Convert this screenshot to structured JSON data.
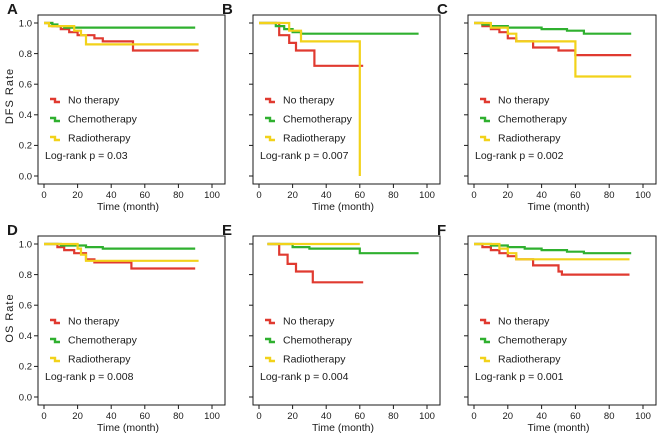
{
  "figure_labels": {
    "dfs_ylabel": "DFS Rate",
    "os_ylabel": "OS Rate"
  },
  "colors": {
    "no_therapy": "#e03a30",
    "chemotherapy": "#2fb02f",
    "radiotherapy": "#f2d21a",
    "axis": "#1a1a1a"
  },
  "chart_data": [
    {
      "type": "line",
      "subtype": "kaplan-meier",
      "panel": "A",
      "xlabel": "Time (month)",
      "ylabel": "DFS Rate",
      "xlim": [
        0,
        100
      ],
      "ylim": [
        0,
        1.0
      ],
      "xticks": [
        0,
        20,
        40,
        60,
        80,
        100
      ],
      "yticks": [
        0.0,
        0.2,
        0.4,
        0.6,
        0.8,
        1.0
      ],
      "show_y_ticklabels": true,
      "logrank": "Log-rank p = 0.03",
      "series": [
        {
          "name": "No therapy",
          "color_key": "no_therapy",
          "steps": [
            [
              0,
              1.0
            ],
            [
              5,
              0.98
            ],
            [
              10,
              0.96
            ],
            [
              15,
              0.94
            ],
            [
              20,
              0.92
            ],
            [
              30,
              0.9
            ],
            [
              35,
              0.88
            ],
            [
              53,
              0.82
            ],
            [
              92,
              0.82
            ]
          ]
        },
        {
          "name": "Chemotherapy",
          "color_key": "chemotherapy",
          "steps": [
            [
              0,
              1.0
            ],
            [
              5,
              0.99
            ],
            [
              8,
              0.98
            ],
            [
              12,
              0.97
            ],
            [
              90,
              0.97
            ]
          ]
        },
        {
          "name": "Radiotherapy",
          "color_key": "radiotherapy",
          "steps": [
            [
              0,
              1.0
            ],
            [
              3,
              0.98
            ],
            [
              18,
              0.95
            ],
            [
              22,
              0.92
            ],
            [
              25,
              0.86
            ],
            [
              92,
              0.86
            ]
          ]
        }
      ]
    },
    {
      "type": "line",
      "subtype": "kaplan-meier",
      "panel": "B",
      "xlabel": "Time (month)",
      "ylabel": "DFS Rate",
      "xlim": [
        0,
        100
      ],
      "ylim": [
        0,
        1.0
      ],
      "xticks": [
        0,
        20,
        40,
        60,
        80,
        100
      ],
      "yticks": [
        0.0,
        0.2,
        0.4,
        0.6,
        0.8,
        1.0
      ],
      "show_y_ticklabels": false,
      "logrank": "Log-rank p = 0.007",
      "series": [
        {
          "name": "No therapy",
          "color_key": "no_therapy",
          "steps": [
            [
              0,
              1.0
            ],
            [
              12,
              0.92
            ],
            [
              18,
              0.87
            ],
            [
              22,
              0.82
            ],
            [
              33,
              0.72
            ],
            [
              62,
              0.72
            ]
          ]
        },
        {
          "name": "Chemotherapy",
          "color_key": "chemotherapy",
          "steps": [
            [
              0,
              1.0
            ],
            [
              10,
              0.98
            ],
            [
              15,
              0.96
            ],
            [
              20,
              0.94
            ],
            [
              25,
              0.93
            ],
            [
              95,
              0.93
            ]
          ]
        },
        {
          "name": "Radiotherapy",
          "color_key": "radiotherapy",
          "steps": [
            [
              0,
              1.0
            ],
            [
              18,
              0.95
            ],
            [
              25,
              0.88
            ],
            [
              60,
              0.88
            ],
            [
              60,
              0.0
            ]
          ]
        }
      ]
    },
    {
      "type": "line",
      "subtype": "kaplan-meier",
      "panel": "C",
      "xlabel": "Time (month)",
      "ylabel": "DFS Rate",
      "xlim": [
        0,
        100
      ],
      "ylim": [
        0,
        1.0
      ],
      "xticks": [
        0,
        20,
        40,
        60,
        80,
        100
      ],
      "yticks": [
        0.0,
        0.2,
        0.4,
        0.6,
        0.8,
        1.0
      ],
      "show_y_ticklabels": false,
      "logrank": "Log-rank p = 0.002",
      "series": [
        {
          "name": "No therapy",
          "color_key": "no_therapy",
          "steps": [
            [
              0,
              1.0
            ],
            [
              5,
              0.98
            ],
            [
              10,
              0.96
            ],
            [
              15,
              0.94
            ],
            [
              20,
              0.9
            ],
            [
              25,
              0.88
            ],
            [
              35,
              0.84
            ],
            [
              50,
              0.82
            ],
            [
              60,
              0.79
            ],
            [
              93,
              0.79
            ]
          ]
        },
        {
          "name": "Chemotherapy",
          "color_key": "chemotherapy",
          "steps": [
            [
              0,
              1.0
            ],
            [
              5,
              0.99
            ],
            [
              10,
              0.98
            ],
            [
              20,
              0.97
            ],
            [
              40,
              0.96
            ],
            [
              55,
              0.95
            ],
            [
              65,
              0.93
            ],
            [
              93,
              0.93
            ]
          ]
        },
        {
          "name": "Radiotherapy",
          "color_key": "radiotherapy",
          "steps": [
            [
              0,
              1.0
            ],
            [
              10,
              0.97
            ],
            [
              20,
              0.93
            ],
            [
              25,
              0.88
            ],
            [
              60,
              0.65
            ],
            [
              93,
              0.65
            ]
          ]
        }
      ]
    },
    {
      "type": "line",
      "subtype": "kaplan-meier",
      "panel": "D",
      "xlabel": "Time (month)",
      "ylabel": "OS Rate",
      "xlim": [
        0,
        100
      ],
      "ylim": [
        0,
        1.0
      ],
      "xticks": [
        0,
        20,
        40,
        60,
        80,
        100
      ],
      "yticks": [
        0.0,
        0.2,
        0.4,
        0.6,
        0.8,
        1.0
      ],
      "show_y_ticklabels": true,
      "logrank": "Log-rank p = 0.008",
      "series": [
        {
          "name": "No therapy",
          "color_key": "no_therapy",
          "steps": [
            [
              0,
              1.0
            ],
            [
              8,
              0.98
            ],
            [
              12,
              0.96
            ],
            [
              18,
              0.94
            ],
            [
              25,
              0.9
            ],
            [
              30,
              0.88
            ],
            [
              52,
              0.84
            ],
            [
              90,
              0.84
            ]
          ]
        },
        {
          "name": "Chemotherapy",
          "color_key": "chemotherapy",
          "steps": [
            [
              0,
              1.0
            ],
            [
              10,
              0.99
            ],
            [
              25,
              0.98
            ],
            [
              35,
              0.97
            ],
            [
              90,
              0.97
            ]
          ]
        },
        {
          "name": "Radiotherapy",
          "color_key": "radiotherapy",
          "steps": [
            [
              0,
              1.0
            ],
            [
              20,
              0.97
            ],
            [
              22,
              0.93
            ],
            [
              25,
              0.89
            ],
            [
              92,
              0.89
            ]
          ]
        }
      ]
    },
    {
      "type": "line",
      "subtype": "kaplan-meier",
      "panel": "E",
      "xlabel": "Time (month)",
      "ylabel": "OS Rate",
      "xlim": [
        0,
        100
      ],
      "ylim": [
        0,
        1.0
      ],
      "xticks": [
        0,
        20,
        40,
        60,
        80,
        100
      ],
      "yticks": [
        0.0,
        0.2,
        0.4,
        0.6,
        0.8,
        1.0
      ],
      "show_y_ticklabels": false,
      "logrank": "Log-rank p = 0.004",
      "series": [
        {
          "name": "No therapy",
          "color_key": "no_therapy",
          "steps": [
            [
              5,
              1.0
            ],
            [
              12,
              0.93
            ],
            [
              17,
              0.87
            ],
            [
              22,
              0.82
            ],
            [
              32,
              0.75
            ],
            [
              62,
              0.75
            ]
          ]
        },
        {
          "name": "Chemotherapy",
          "color_key": "chemotherapy",
          "steps": [
            [
              5,
              1.0
            ],
            [
              20,
              0.98
            ],
            [
              30,
              0.97
            ],
            [
              60,
              0.94
            ],
            [
              95,
              0.94
            ]
          ]
        },
        {
          "name": "Radiotherapy",
          "color_key": "radiotherapy",
          "steps": [
            [
              5,
              1.0
            ],
            [
              60,
              1.0
            ]
          ]
        }
      ]
    },
    {
      "type": "line",
      "subtype": "kaplan-meier",
      "panel": "F",
      "xlabel": "Time (month)",
      "ylabel": "OS Rate",
      "xlim": [
        0,
        100
      ],
      "ylim": [
        0,
        1.0
      ],
      "xticks": [
        0,
        20,
        40,
        60,
        80,
        100
      ],
      "yticks": [
        0.0,
        0.2,
        0.4,
        0.6,
        0.8,
        1.0
      ],
      "show_y_ticklabels": false,
      "logrank": "Log-rank p = 0.001",
      "series": [
        {
          "name": "No therapy",
          "color_key": "no_therapy",
          "steps": [
            [
              0,
              1.0
            ],
            [
              5,
              0.98
            ],
            [
              10,
              0.96
            ],
            [
              15,
              0.94
            ],
            [
              20,
              0.92
            ],
            [
              25,
              0.9
            ],
            [
              35,
              0.86
            ],
            [
              50,
              0.82
            ],
            [
              52,
              0.8
            ],
            [
              92,
              0.8
            ]
          ]
        },
        {
          "name": "Chemotherapy",
          "color_key": "chemotherapy",
          "steps": [
            [
              0,
              1.0
            ],
            [
              10,
              0.99
            ],
            [
              20,
              0.98
            ],
            [
              30,
              0.97
            ],
            [
              40,
              0.96
            ],
            [
              55,
              0.95
            ],
            [
              65,
              0.94
            ],
            [
              93,
              0.94
            ]
          ]
        },
        {
          "name": "Radiotherapy",
          "color_key": "radiotherapy",
          "steps": [
            [
              0,
              1.0
            ],
            [
              15,
              0.97
            ],
            [
              20,
              0.94
            ],
            [
              25,
              0.9
            ],
            [
              92,
              0.9
            ]
          ]
        }
      ]
    }
  ]
}
